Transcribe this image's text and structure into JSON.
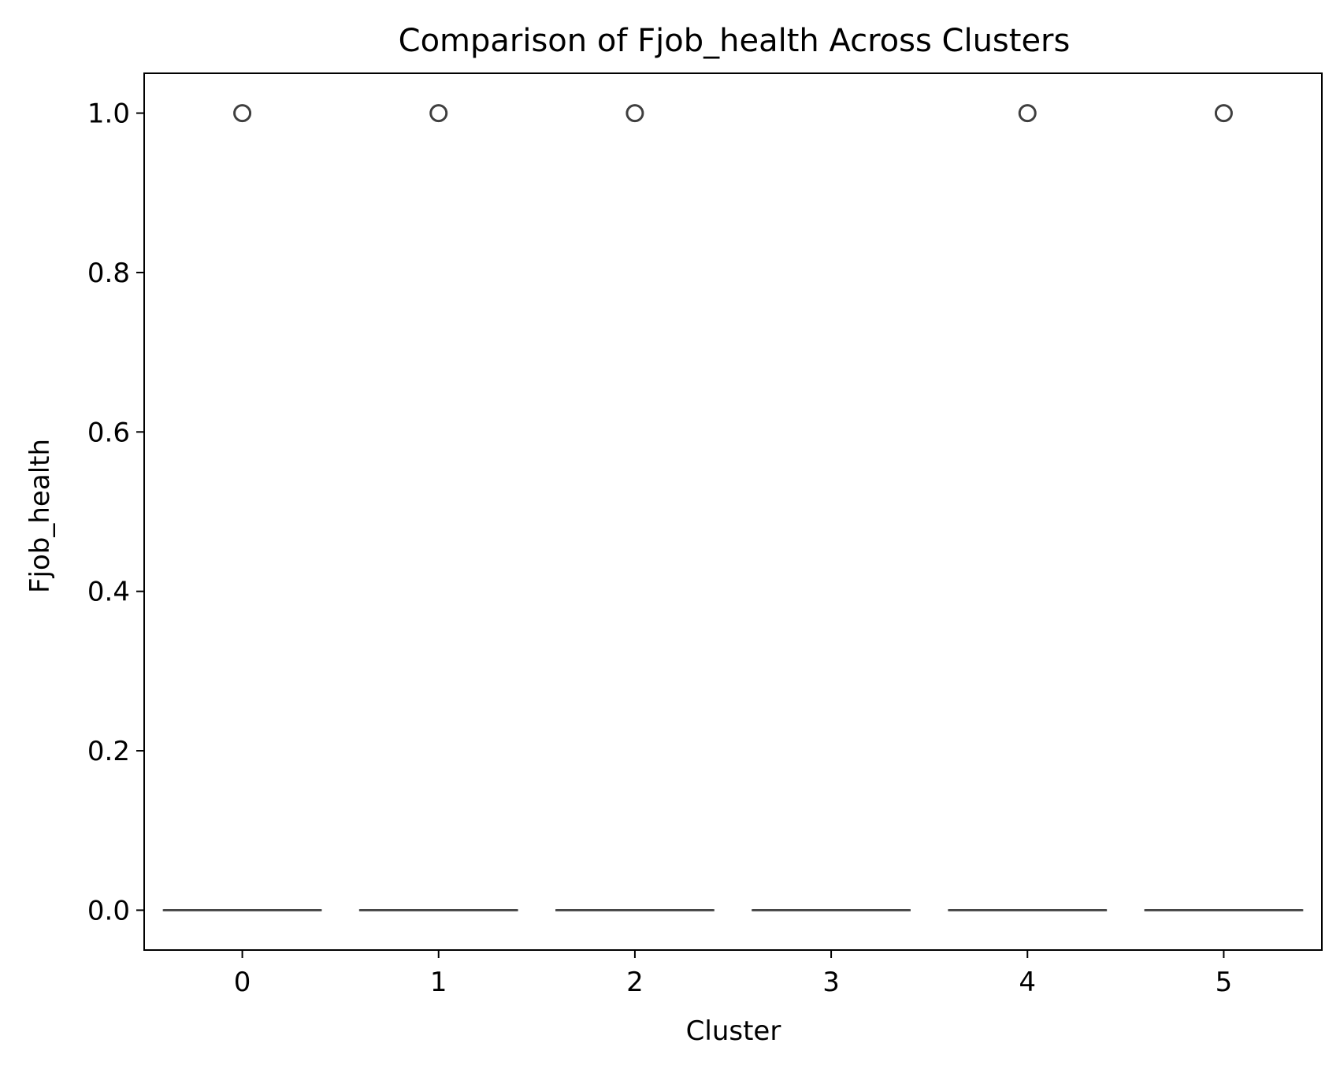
{
  "chart_data": {
    "type": "box",
    "title": "Comparison of Fjob_health Across Clusters",
    "xlabel": "Cluster",
    "ylabel": "Fjob_health",
    "categories": [
      "0",
      "1",
      "2",
      "3",
      "4",
      "5"
    ],
    "boxes": [
      {
        "category": "0",
        "q1": 0.0,
        "median": 0.0,
        "q3": 0.0,
        "whisker_low": 0.0,
        "whisker_high": 0.0,
        "outliers": [
          1.0
        ]
      },
      {
        "category": "1",
        "q1": 0.0,
        "median": 0.0,
        "q3": 0.0,
        "whisker_low": 0.0,
        "whisker_high": 0.0,
        "outliers": [
          1.0
        ]
      },
      {
        "category": "2",
        "q1": 0.0,
        "median": 0.0,
        "q3": 0.0,
        "whisker_low": 0.0,
        "whisker_high": 0.0,
        "outliers": [
          1.0
        ]
      },
      {
        "category": "3",
        "q1": 0.0,
        "median": 0.0,
        "q3": 0.0,
        "whisker_low": 0.0,
        "whisker_high": 0.0,
        "outliers": []
      },
      {
        "category": "4",
        "q1": 0.0,
        "median": 0.0,
        "q3": 0.0,
        "whisker_low": 0.0,
        "whisker_high": 0.0,
        "outliers": [
          1.0
        ]
      },
      {
        "category": "5",
        "q1": 0.0,
        "median": 0.0,
        "q3": 0.0,
        "whisker_low": 0.0,
        "whisker_high": 0.0,
        "outliers": [
          1.0
        ]
      }
    ],
    "ylim": [
      -0.05,
      1.05
    ],
    "yticks": [
      0.0,
      0.2,
      0.4,
      0.6,
      0.8,
      1.0
    ],
    "ytick_labels": [
      "0.0",
      "0.2",
      "0.4",
      "0.6",
      "0.8",
      "1.0"
    ],
    "grid": false,
    "legend": "none",
    "colors": {
      "box_line": "#3f3f3f",
      "axes": "#000000",
      "background": "#ffffff"
    }
  }
}
